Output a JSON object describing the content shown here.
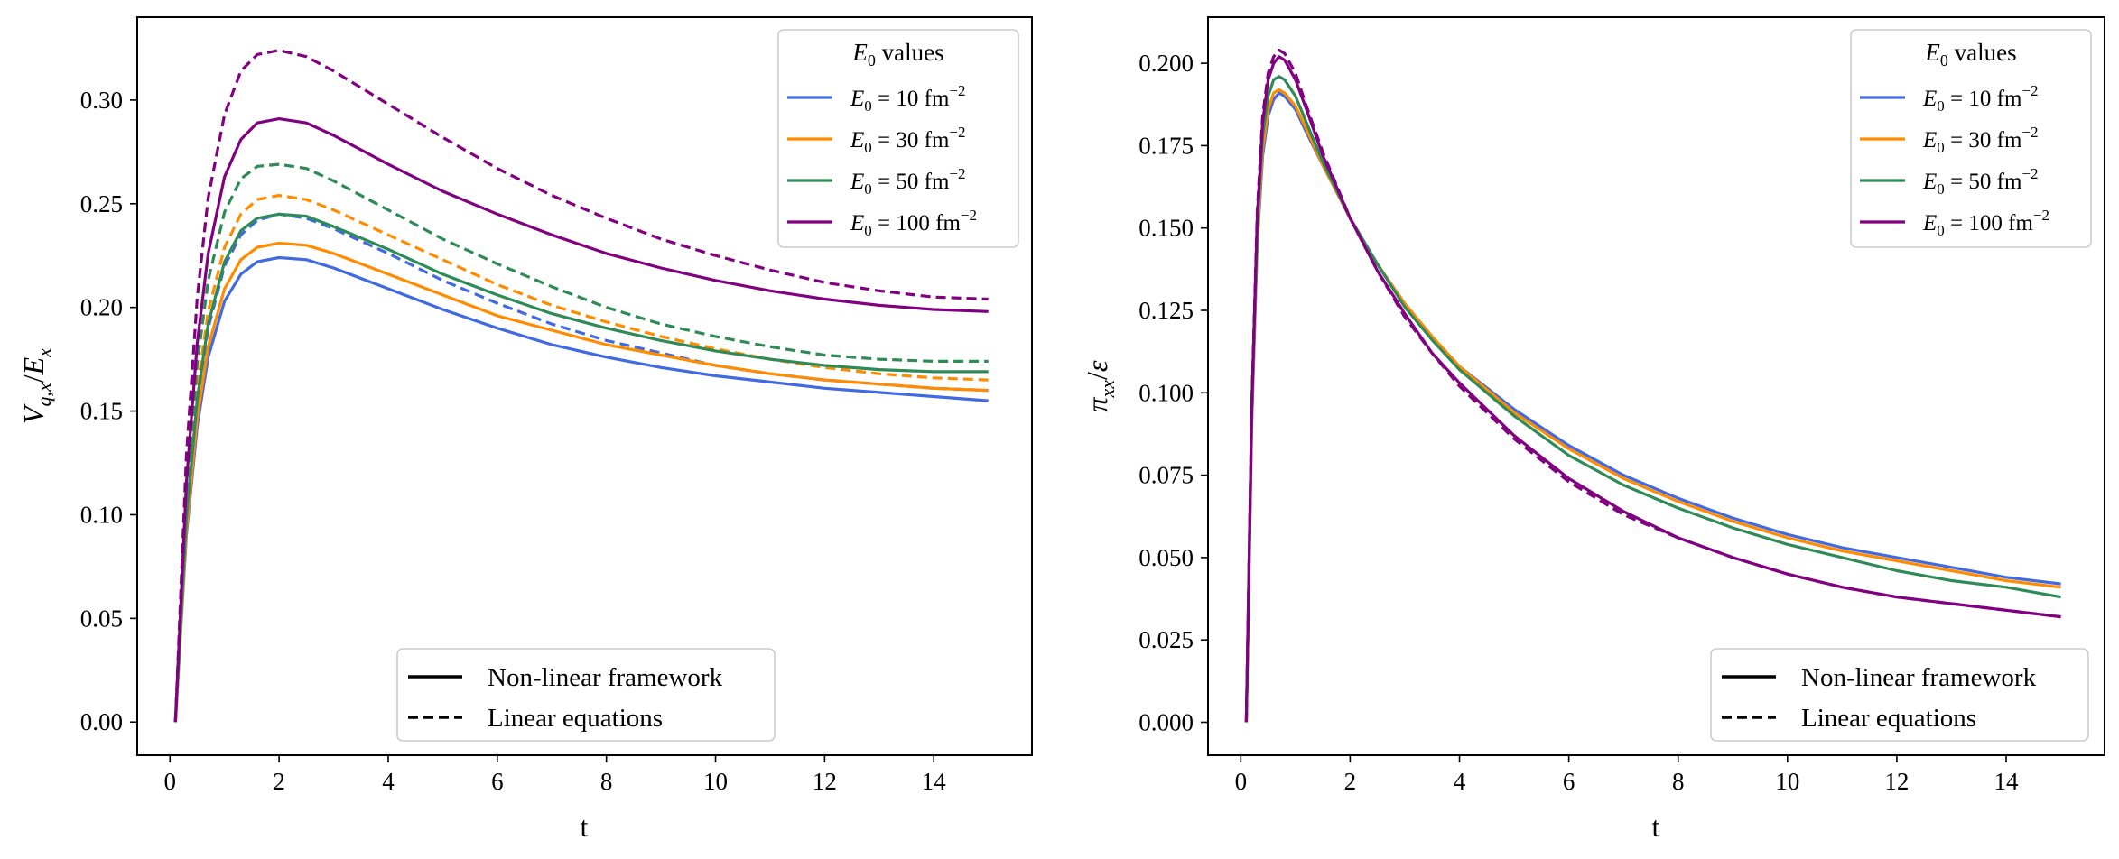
{
  "chart_data": [
    {
      "type": "line",
      "xlabel": "t",
      "ylabel": "V_{q,x}/E_x",
      "xlim": [
        -0.6,
        15.8
      ],
      "ylim": [
        -0.016,
        0.34
      ],
      "xticks": [
        "0",
        "2",
        "4",
        "6",
        "8",
        "10",
        "12",
        "14"
      ],
      "yticks": [
        "0.00",
        "0.05",
        "0.10",
        "0.15",
        "0.20",
        "0.25",
        "0.30"
      ],
      "legend_title": "values",
      "legend_title_symbol": "E0",
      "style_legend": [
        "Non-linear framework",
        "Linear equations"
      ],
      "x": [
        0.1,
        0.3,
        0.5,
        0.7,
        1.0,
        1.3,
        1.6,
        2.0,
        2.5,
        3.0,
        4.0,
        5.0,
        6.0,
        7.0,
        8.0,
        9.0,
        10.0,
        11.0,
        12.0,
        13.0,
        14.0,
        15.0
      ],
      "series": [
        {
          "name": "E0 = 10 fm^-2",
          "label_prefix": "E0 = 10 fm",
          "label_exp": "−2",
          "color": "#4169e1",
          "dash": "solid",
          "values": [
            0.0,
            0.09,
            0.143,
            0.176,
            0.203,
            0.216,
            0.222,
            0.224,
            0.223,
            0.219,
            0.209,
            0.199,
            0.19,
            0.182,
            0.176,
            0.171,
            0.167,
            0.164,
            0.161,
            0.159,
            0.157,
            0.155
          ]
        },
        {
          "name": "E0 = 10 fm^-2",
          "color": "#4169e1",
          "dash": "dashed",
          "values": [
            0.0,
            0.1,
            0.155,
            0.19,
            0.22,
            0.235,
            0.242,
            0.245,
            0.243,
            0.238,
            0.226,
            0.213,
            0.202,
            0.192,
            0.184,
            0.178,
            0.172,
            0.168,
            0.165,
            0.163,
            0.161,
            0.16
          ]
        },
        {
          "name": "E0 = 30 fm^-2",
          "label_prefix": "E0 = 30 fm",
          "label_exp": "−2",
          "color": "#ff8c00",
          "dash": "solid",
          "values": [
            0.0,
            0.092,
            0.147,
            0.181,
            0.209,
            0.223,
            0.229,
            0.231,
            0.23,
            0.226,
            0.216,
            0.206,
            0.196,
            0.189,
            0.182,
            0.177,
            0.172,
            0.168,
            0.165,
            0.163,
            0.161,
            0.16
          ]
        },
        {
          "name": "E0 = 30 fm^-2",
          "color": "#ff8c00",
          "dash": "dashed",
          "values": [
            0.0,
            0.103,
            0.161,
            0.198,
            0.229,
            0.245,
            0.252,
            0.254,
            0.252,
            0.247,
            0.235,
            0.223,
            0.211,
            0.201,
            0.193,
            0.186,
            0.18,
            0.175,
            0.171,
            0.168,
            0.166,
            0.165
          ]
        },
        {
          "name": "E0 = 50 fm^-2",
          "label_prefix": "E0 = 50 fm",
          "label_exp": "−2",
          "color": "#2e8b57",
          "dash": "solid",
          "values": [
            0.0,
            0.098,
            0.156,
            0.192,
            0.222,
            0.237,
            0.243,
            0.245,
            0.244,
            0.239,
            0.228,
            0.216,
            0.206,
            0.197,
            0.19,
            0.184,
            0.179,
            0.175,
            0.172,
            0.17,
            0.169,
            0.169
          ]
        },
        {
          "name": "E0 = 50 fm^-2",
          "color": "#2e8b57",
          "dash": "dashed",
          "values": [
            0.0,
            0.11,
            0.173,
            0.213,
            0.246,
            0.262,
            0.268,
            0.269,
            0.267,
            0.261,
            0.247,
            0.233,
            0.221,
            0.21,
            0.2,
            0.192,
            0.186,
            0.181,
            0.177,
            0.175,
            0.174,
            0.174
          ]
        },
        {
          "name": "E0 = 100 fm^-2",
          "label_prefix": "E0 = 100 fm",
          "label_exp": "−2",
          "color": "#800080",
          "dash": "solid",
          "values": [
            0.0,
            0.115,
            0.183,
            0.226,
            0.263,
            0.281,
            0.289,
            0.291,
            0.289,
            0.283,
            0.269,
            0.256,
            0.245,
            0.235,
            0.226,
            0.219,
            0.213,
            0.208,
            0.204,
            0.201,
            0.199,
            0.198
          ]
        },
        {
          "name": "E0 = 100 fm^-2",
          "color": "#800080",
          "dash": "dashed",
          "values": [
            0.0,
            0.128,
            0.205,
            0.253,
            0.293,
            0.314,
            0.322,
            0.324,
            0.321,
            0.314,
            0.298,
            0.282,
            0.267,
            0.254,
            0.243,
            0.233,
            0.225,
            0.218,
            0.212,
            0.208,
            0.205,
            0.204
          ]
        }
      ]
    },
    {
      "type": "line",
      "xlabel": "t",
      "ylabel": "π_{xx}/ε",
      "xlim": [
        -0.6,
        15.8
      ],
      "ylim": [
        -0.01,
        0.214
      ],
      "xticks": [
        "0",
        "2",
        "4",
        "6",
        "8",
        "10",
        "12",
        "14"
      ],
      "yticks": [
        "0.000",
        "0.025",
        "0.050",
        "0.075",
        "0.100",
        "0.125",
        "0.150",
        "0.175",
        "0.200"
      ],
      "legend_title": "values",
      "legend_title_symbol": "E0",
      "style_legend": [
        "Non-linear framework",
        "Linear equations"
      ],
      "x": [
        0.1,
        0.2,
        0.3,
        0.4,
        0.5,
        0.6,
        0.7,
        0.8,
        1.0,
        1.2,
        1.5,
        2.0,
        2.5,
        3.0,
        3.5,
        4.0,
        5.0,
        6.0,
        7.0,
        8.0,
        9.0,
        10.0,
        11.0,
        12.0,
        13.0,
        14.0,
        15.0
      ],
      "series": [
        {
          "name": "E0 = 10 fm^-2",
          "label_prefix": "E0 = 10 fm",
          "label_exp": "−2",
          "color": "#4169e1",
          "dash": "solid",
          "values": [
            0.0,
            0.09,
            0.145,
            0.172,
            0.184,
            0.189,
            0.191,
            0.19,
            0.186,
            0.179,
            0.169,
            0.153,
            0.139,
            0.127,
            0.117,
            0.108,
            0.095,
            0.084,
            0.075,
            0.068,
            0.062,
            0.057,
            0.053,
            0.05,
            0.047,
            0.044,
            0.042
          ]
        },
        {
          "name": "E0 = 30 fm^-2",
          "label_prefix": "E0 = 30 fm",
          "label_exp": "−2",
          "color": "#ff8c00",
          "dash": "solid",
          "values": [
            0.0,
            0.091,
            0.147,
            0.174,
            0.186,
            0.191,
            0.192,
            0.191,
            0.187,
            0.18,
            0.169,
            0.153,
            0.139,
            0.127,
            0.117,
            0.108,
            0.094,
            0.083,
            0.074,
            0.067,
            0.061,
            0.056,
            0.052,
            0.049,
            0.046,
            0.043,
            0.041
          ]
        },
        {
          "name": "E0 = 50 fm^-2",
          "label_prefix": "E0 = 50 fm",
          "label_exp": "−2",
          "color": "#2e8b57",
          "dash": "solid",
          "values": [
            0.0,
            0.093,
            0.15,
            0.178,
            0.19,
            0.195,
            0.196,
            0.195,
            0.19,
            0.182,
            0.17,
            0.153,
            0.139,
            0.126,
            0.116,
            0.107,
            0.093,
            0.081,
            0.072,
            0.065,
            0.059,
            0.054,
            0.05,
            0.046,
            0.043,
            0.041,
            0.038
          ]
        },
        {
          "name": "E0 = 100 fm^-2",
          "label_prefix": "E0 = 100 fm",
          "label_exp": "−2",
          "color": "#800080",
          "dash": "solid",
          "values": [
            0.0,
            0.095,
            0.153,
            0.182,
            0.195,
            0.2,
            0.202,
            0.201,
            0.195,
            0.186,
            0.172,
            0.153,
            0.137,
            0.124,
            0.112,
            0.103,
            0.087,
            0.074,
            0.064,
            0.056,
            0.05,
            0.045,
            0.041,
            0.038,
            0.036,
            0.034,
            0.032
          ]
        },
        {
          "name": "E0 = 100 fm^-2",
          "color": "#800080",
          "dash": "dashed",
          "values": [
            0.0,
            0.096,
            0.155,
            0.184,
            0.197,
            0.202,
            0.204,
            0.203,
            0.197,
            0.187,
            0.173,
            0.153,
            0.137,
            0.123,
            0.112,
            0.102,
            0.086,
            0.073,
            0.063,
            0.056,
            0.05,
            0.045,
            0.041,
            0.038,
            0.036,
            0.034,
            0.032
          ]
        }
      ]
    }
  ]
}
